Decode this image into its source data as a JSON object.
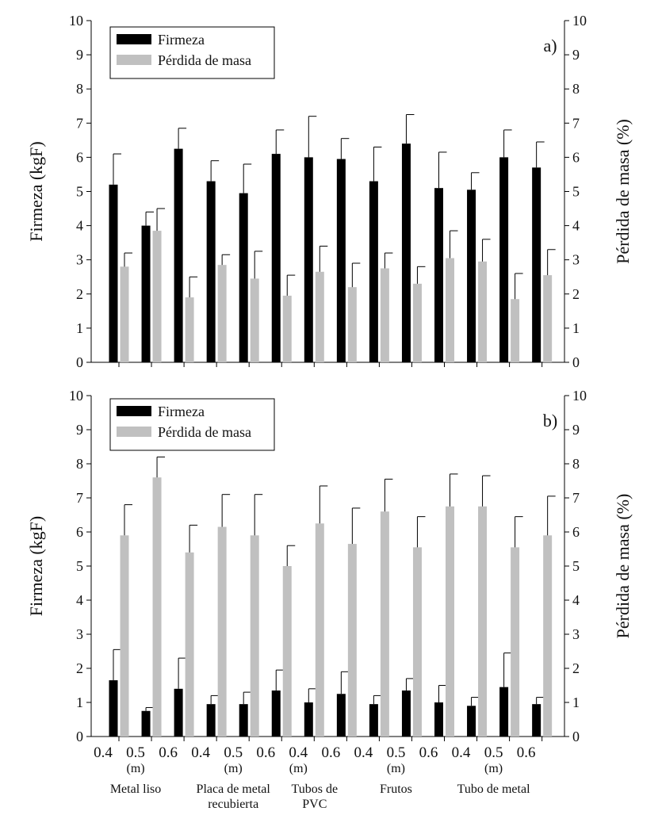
{
  "chart_data": [
    {
      "type": "bar",
      "panel_label": "a)",
      "title": "",
      "ylabel_left": "Firmeza (kgF)",
      "ylabel_right": "Pérdida de masa (%)",
      "ylim": [
        0,
        10
      ],
      "yticks": [
        "0",
        "1",
        "2",
        "3",
        "4",
        "5",
        "6",
        "7",
        "8",
        "9",
        "10"
      ],
      "legend": [
        "Firmeza",
        "Pérdida de masa"
      ],
      "legend_position": "top-left",
      "colors": {
        "firmeza": "#000000",
        "perdida": "#c0c0c0"
      },
      "categories": [
        "0.4",
        "0.5",
        "0.6",
        "0.4",
        "0.5",
        "0.6",
        "0.4",
        "0.6",
        "0.4",
        "0.5",
        "0.6",
        "0.4",
        "0.5",
        "0.6"
      ],
      "series": [
        {
          "name": "Firmeza",
          "values": [
            5.2,
            4.0,
            6.25,
            5.3,
            4.95,
            6.1,
            6.0,
            5.95,
            5.3,
            6.4,
            5.1,
            5.05,
            6.0,
            5.7
          ],
          "errors": [
            0.9,
            0.4,
            0.6,
            0.6,
            0.85,
            0.7,
            1.2,
            0.6,
            1.0,
            0.85,
            1.05,
            0.5,
            0.8,
            0.75
          ]
        },
        {
          "name": "Pérdida de masa",
          "values": [
            2.8,
            3.85,
            1.9,
            2.85,
            2.45,
            1.95,
            2.65,
            2.2,
            2.75,
            2.3,
            3.05,
            2.95,
            1.85,
            2.55
          ],
          "errors": [
            0.4,
            0.65,
            0.6,
            0.3,
            0.8,
            0.6,
            0.75,
            0.7,
            0.45,
            0.5,
            0.8,
            0.65,
            0.75,
            0.75
          ]
        }
      ]
    },
    {
      "type": "bar",
      "panel_label": "b)",
      "title": "",
      "ylabel_left": "Firmeza (kgF)",
      "ylabel_right": "Pérdida de masa (%)",
      "ylim": [
        0,
        10
      ],
      "yticks": [
        "0",
        "1",
        "2",
        "3",
        "4",
        "5",
        "6",
        "7",
        "8",
        "9",
        "10"
      ],
      "legend": [
        "Firmeza",
        "Pérdida de masa"
      ],
      "legend_position": "top-left",
      "colors": {
        "firmeza": "#000000",
        "perdida": "#c0c0c0"
      },
      "categories": [
        "0.4",
        "0.5",
        "0.6",
        "0.4",
        "0.5",
        "0.6",
        "0.4",
        "0.6",
        "0.4",
        "0.5",
        "0.6",
        "0.4",
        "0.5",
        "0.6"
      ],
      "series": [
        {
          "name": "Firmeza",
          "values": [
            1.65,
            0.75,
            1.4,
            0.95,
            0.95,
            1.35,
            1.0,
            1.25,
            0.95,
            1.35,
            1.0,
            0.9,
            1.45,
            0.95
          ],
          "errors": [
            0.9,
            0.1,
            0.9,
            0.25,
            0.35,
            0.6,
            0.4,
            0.65,
            0.25,
            0.35,
            0.5,
            0.25,
            1.0,
            0.2
          ]
        },
        {
          "name": "Pérdida de masa",
          "values": [
            5.9,
            7.6,
            5.4,
            6.15,
            5.9,
            5.0,
            6.25,
            5.65,
            6.6,
            5.55,
            6.75,
            6.75,
            5.55,
            5.9
          ],
          "errors": [
            0.9,
            0.6,
            0.8,
            0.95,
            1.2,
            0.6,
            1.1,
            1.05,
            0.95,
            0.9,
            0.95,
            0.9,
            0.9,
            1.15
          ]
        }
      ]
    }
  ],
  "xaxis": {
    "tick_labels": [
      "0.4",
      "0.5",
      "0.6",
      "0.4",
      "0.5",
      "0.6",
      "0.4",
      "0.6",
      "0.4",
      "0.5",
      "0.6",
      "0.4",
      "0.5",
      "0.6"
    ],
    "unit_label": "(m)",
    "unit_positions": [
      1,
      4,
      6,
      9,
      12
    ],
    "groups": [
      {
        "lines": [
          "Metal liso"
        ],
        "center_index": 1
      },
      {
        "lines": [
          "Placa de metal",
          "recubierta"
        ],
        "center_index": 4
      },
      {
        "lines": [
          "Tubos de",
          "PVC"
        ],
        "center_index": 6.5
      },
      {
        "lines": [
          "Frutos"
        ],
        "center_index": 9
      },
      {
        "lines": [
          "Tubo de metal"
        ],
        "center_index": 12
      }
    ]
  }
}
